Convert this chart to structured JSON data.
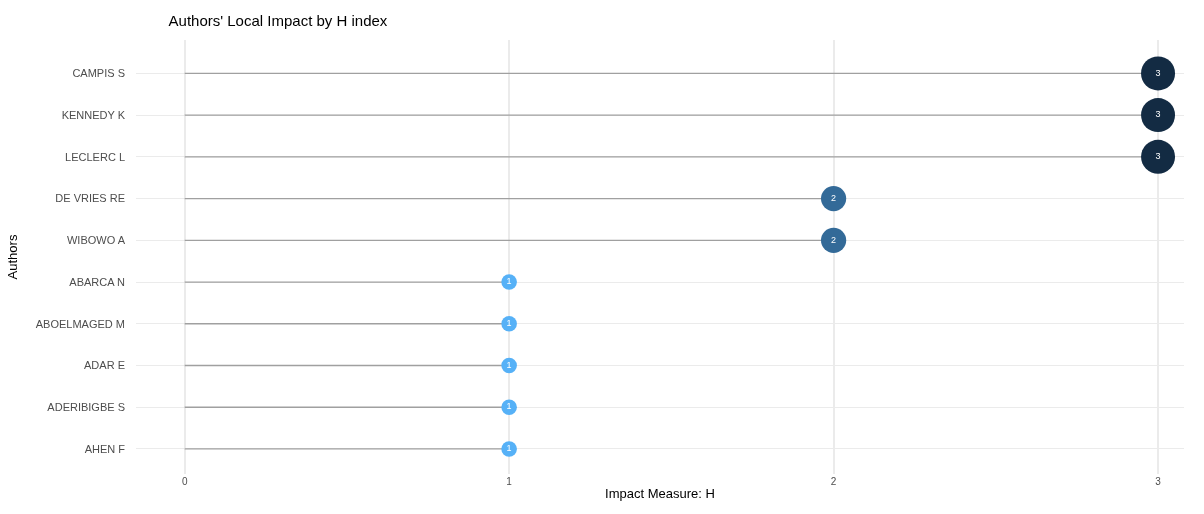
{
  "chart_data": {
    "type": "lollipop",
    "orientation": "horizontal",
    "title": "Authors' Local Impact by H index",
    "xlabel": "Impact Measure: H",
    "ylabel": "Authors",
    "categories": [
      "CAMPIS S",
      "KENNEDY K",
      "LECLERC L",
      "DE VRIES RE",
      "WIBOWO A",
      "ABARCA N",
      "ABOELMAGED M",
      "ADAR E",
      "ADERIBIGBE S",
      "AHEN F"
    ],
    "values": [
      3,
      3,
      3,
      2,
      2,
      1,
      1,
      1,
      1,
      1
    ],
    "colors": [
      "#132b43",
      "#132b43",
      "#132b43",
      "#336a98",
      "#336a98",
      "#56b1f7",
      "#56b1f7",
      "#56b1f7",
      "#56b1f7",
      "#56b1f7"
    ],
    "sizes": [
      1,
      1,
      1,
      0.55,
      0.55,
      0.21,
      0.21,
      0.21,
      0.21,
      0.21
    ],
    "xlim": [
      -0.15,
      3.08
    ],
    "xticks": [
      0,
      1,
      2,
      3
    ],
    "grid": true,
    "data_labels": true
  }
}
